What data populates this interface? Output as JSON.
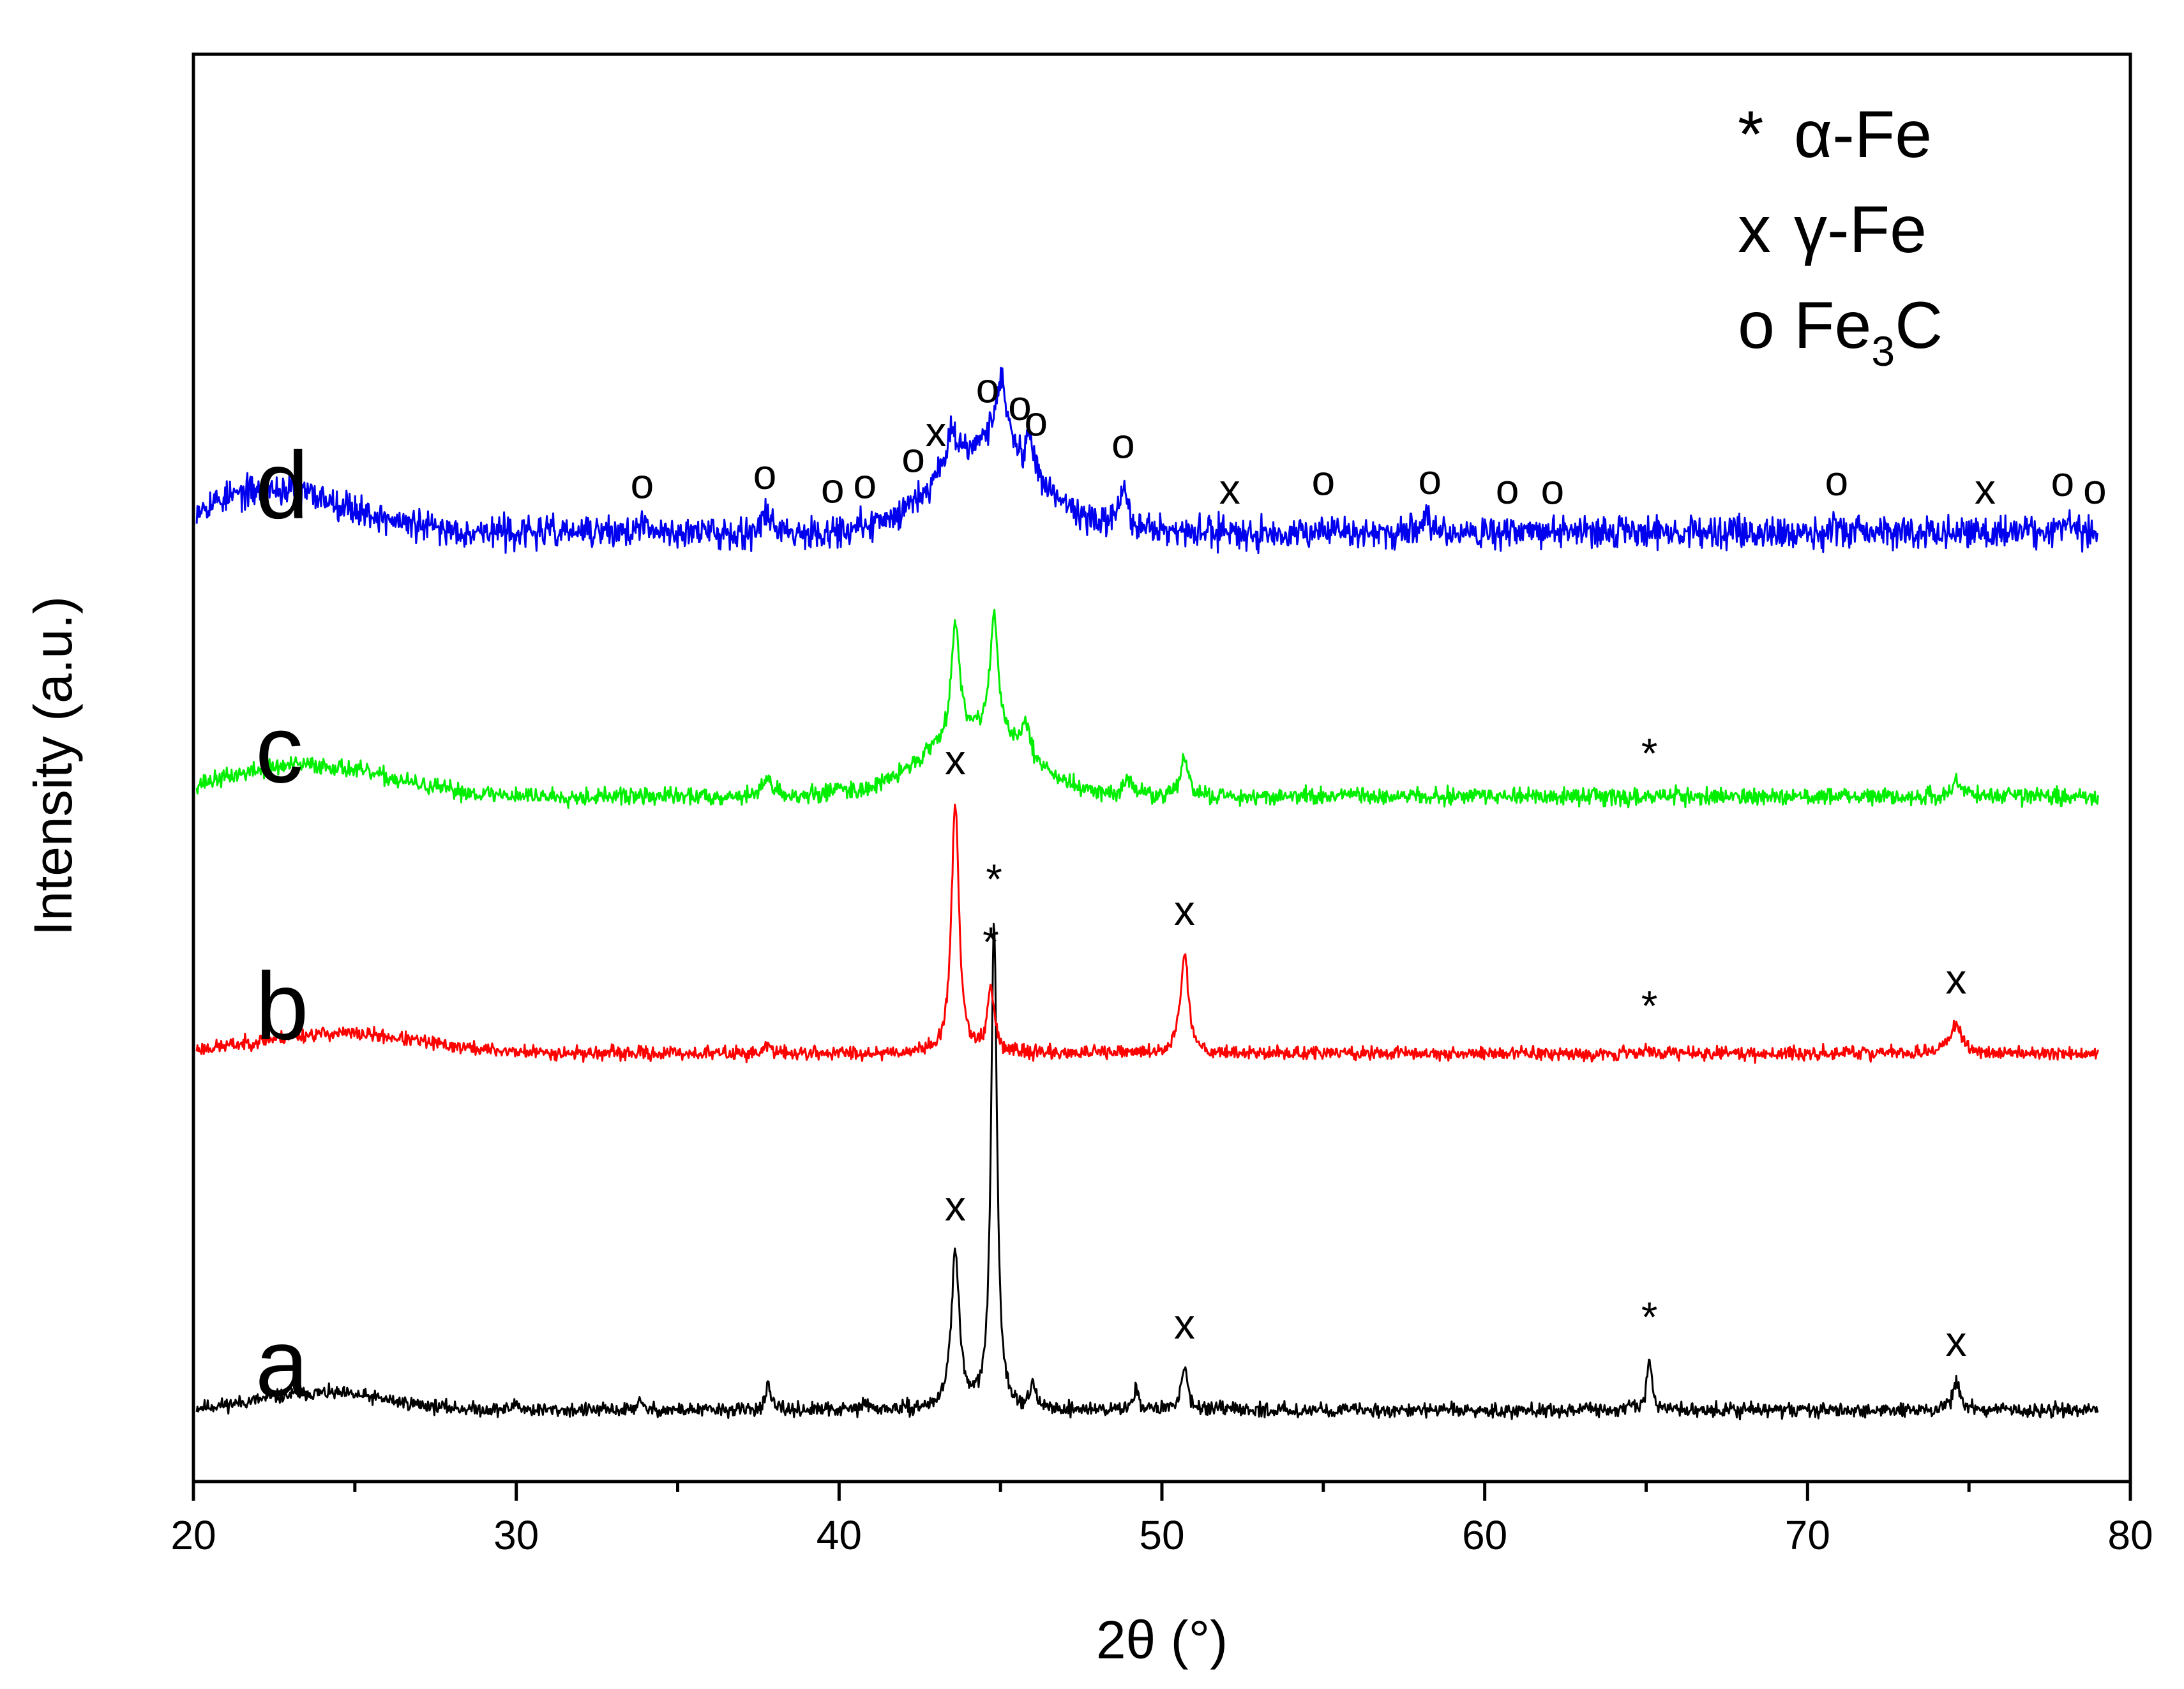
{
  "chart_data": {
    "type": "line",
    "xlabel": "2θ (°)",
    "ylabel": "Intensity (a.u.)",
    "xlim": [
      20,
      80
    ],
    "xticks": [
      20,
      30,
      40,
      50,
      60,
      70,
      80
    ],
    "yticks_visible": false,
    "legend": {
      "position": "top-right",
      "entries": [
        {
          "symbol": "*",
          "text": "α-Fe"
        },
        {
          "symbol": "x",
          "text": "γ-Fe"
        },
        {
          "symbol": "o",
          "text": "Fe",
          "subscript": "3",
          "suffix": "C"
        }
      ]
    },
    "series": [
      {
        "name": "a",
        "color": "#000000",
        "baseline": 0.05,
        "noise": 0.004,
        "seed": 11,
        "bumps": [
          [
            24,
            0.012,
            2.0
          ]
        ],
        "peaks": [
          [
            43.6,
            0.11,
            0.3
          ],
          [
            44.8,
            0.34,
            0.22
          ],
          [
            50.7,
            0.03,
            0.25
          ],
          [
            65.1,
            0.035,
            0.2
          ],
          [
            74.6,
            0.018,
            0.3
          ],
          [
            37.8,
            0.016,
            0.2
          ],
          [
            46.0,
            0.02,
            0.15
          ],
          [
            49.2,
            0.015,
            0.2
          ],
          [
            33.8,
            0.006,
            0.2
          ],
          [
            30.0,
            0.005,
            0.2
          ],
          [
            40.8,
            0.005,
            0.2
          ]
        ],
        "markers": [
          {
            "x": 43.6,
            "symbol": "x"
          },
          {
            "x": 44.8,
            "symbol": "*"
          },
          {
            "x": 50.7,
            "symbol": "x"
          },
          {
            "x": 65.1,
            "symbol": "*"
          },
          {
            "x": 74.6,
            "symbol": "x"
          }
        ]
      },
      {
        "name": "b",
        "color": "#ff0000",
        "baseline": 0.3,
        "noise": 0.004,
        "seed": 23,
        "bumps": [
          [
            24.5,
            0.014,
            2.5
          ]
        ],
        "peaks": [
          [
            43.6,
            0.175,
            0.28
          ],
          [
            44.7,
            0.045,
            0.25
          ],
          [
            50.7,
            0.07,
            0.3
          ],
          [
            74.6,
            0.022,
            0.4
          ],
          [
            37.8,
            0.006,
            0.2
          ],
          [
            65.1,
            0.003,
            0.3
          ]
        ],
        "markers": [
          {
            "x": 43.6,
            "symbol": "x"
          },
          {
            "x": 44.7,
            "symbol": "*"
          },
          {
            "x": 50.7,
            "symbol": "x"
          },
          {
            "x": 65.1,
            "symbol": "*"
          },
          {
            "x": 74.6,
            "symbol": "x"
          }
        ]
      },
      {
        "name": "c",
        "color": "#00ee00",
        "baseline": 0.48,
        "noise": 0.005,
        "seed": 37,
        "bumps": [
          [
            23.5,
            0.022,
            2.5
          ],
          [
            44.2,
            0.045,
            1.6
          ]
        ],
        "peaks": [
          [
            43.6,
            0.08,
            0.3
          ],
          [
            44.8,
            0.085,
            0.3
          ],
          [
            45.8,
            0.025,
            0.3
          ],
          [
            37.8,
            0.015,
            0.3
          ],
          [
            50.7,
            0.025,
            0.3
          ],
          [
            49.0,
            0.012,
            0.3
          ],
          [
            74.6,
            0.012,
            0.3
          ],
          [
            40.0,
            0.006,
            0.4
          ]
        ],
        "markers": [
          {
            "x": 65.1,
            "symbol": "*"
          }
        ]
      },
      {
        "name": "d",
        "color": "#0000ee",
        "baseline": 0.665,
        "noise": 0.009,
        "seed": 53,
        "bumps": [
          [
            22.5,
            0.03,
            2.3
          ],
          [
            44.6,
            0.06,
            1.6
          ]
        ],
        "peaks": [
          [
            45.0,
            0.05,
            0.4
          ],
          [
            43.5,
            0.025,
            0.4
          ],
          [
            48.8,
            0.03,
            0.35
          ],
          [
            37.8,
            0.015,
            0.3
          ],
          [
            45.9,
            0.02,
            0.3
          ],
          [
            33.9,
            0.004,
            0.3
          ],
          [
            58.2,
            0.01,
            0.3
          ],
          [
            55.0,
            0.006,
            0.3
          ],
          [
            70.9,
            0.006,
            0.3
          ],
          [
            78.0,
            0.008,
            0.3
          ]
        ],
        "markers": [
          {
            "x": 33.9,
            "symbol": "o"
          },
          {
            "x": 37.7,
            "symbol": "o"
          },
          {
            "x": 39.8,
            "symbol": "o"
          },
          {
            "x": 40.8,
            "symbol": "o"
          },
          {
            "x": 42.3,
            "symbol": "o"
          },
          {
            "x": 43.0,
            "symbol": "x"
          },
          {
            "x": 44.6,
            "symbol": "o"
          },
          {
            "x": 45.6,
            "symbol": "o"
          },
          {
            "x": 46.1,
            "symbol": "o"
          },
          {
            "x": 48.8,
            "symbol": "o"
          },
          {
            "x": 52.1,
            "symbol": "x"
          },
          {
            "x": 55.0,
            "symbol": "o"
          },
          {
            "x": 58.3,
            "symbol": "o"
          },
          {
            "x": 60.7,
            "symbol": "o"
          },
          {
            "x": 62.1,
            "symbol": "o"
          },
          {
            "x": 70.9,
            "symbol": "o"
          },
          {
            "x": 75.5,
            "symbol": "x"
          },
          {
            "x": 77.9,
            "symbol": "o"
          },
          {
            "x": 78.9,
            "symbol": "o"
          }
        ]
      }
    ]
  }
}
